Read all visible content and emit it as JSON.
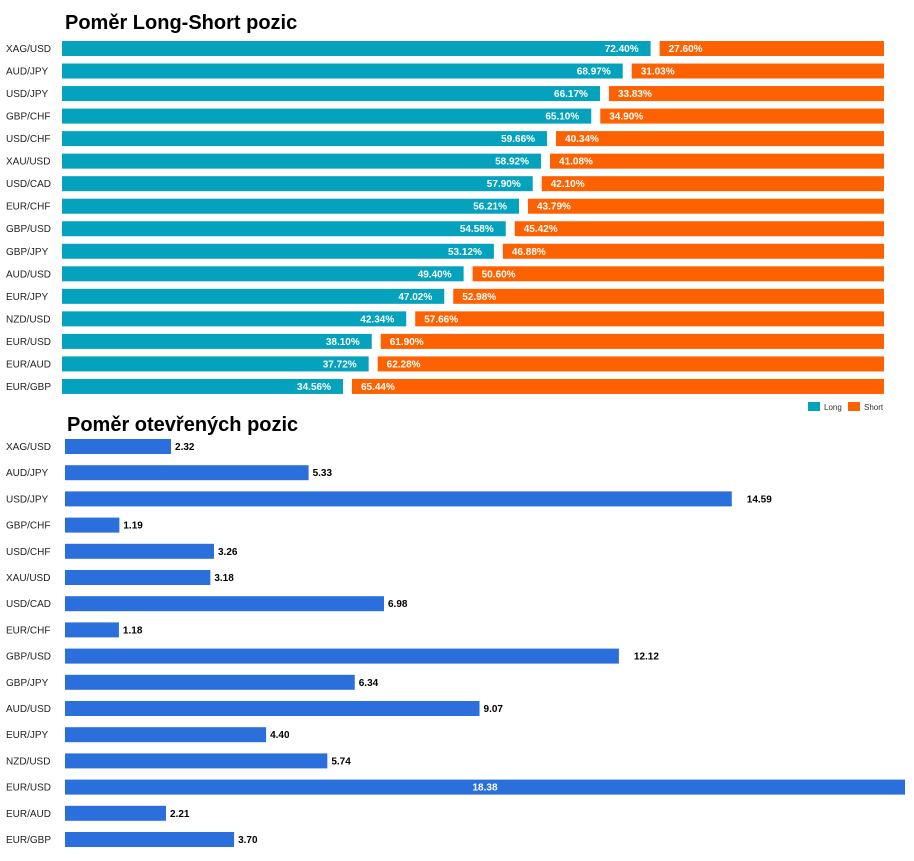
{
  "colors": {
    "long": "#04a2bc",
    "short": "#fe6200",
    "open": "#2a6fdb"
  },
  "chart_data": [
    {
      "type": "bar",
      "orientation": "horizontal",
      "stacked": true,
      "title": "Poměr Long-Short pozic",
      "categories": [
        "XAG/USD",
        "AUD/JPY",
        "USD/JPY",
        "GBP/CHF",
        "USD/CHF",
        "XAU/USD",
        "USD/CAD",
        "EUR/CHF",
        "GBP/USD",
        "GBP/JPY",
        "AUD/USD",
        "EUR/JPY",
        "NZD/USD",
        "EUR/USD",
        "EUR/AUD",
        "EUR/GBP"
      ],
      "series": [
        {
          "name": "Long",
          "values": [
            72.4,
            68.97,
            66.17,
            65.1,
            59.66,
            58.92,
            57.9,
            56.21,
            54.58,
            53.12,
            49.4,
            47.02,
            42.34,
            38.1,
            37.72,
            34.56
          ],
          "labels": [
            "72.40%",
            "68.97%",
            "66.17%",
            "65.10%",
            "59.66%",
            "58.92%",
            "57.90%",
            "56.21%",
            "54.58%",
            "53.12%",
            "49.40%",
            "47.02%",
            "42.34%",
            "38.10%",
            "37.72%",
            "34.56%"
          ]
        },
        {
          "name": "Short",
          "values": [
            27.6,
            31.03,
            33.83,
            34.9,
            40.34,
            41.08,
            42.1,
            43.79,
            45.42,
            46.88,
            50.6,
            52.98,
            57.66,
            61.9,
            62.28,
            65.44
          ],
          "labels": [
            "27.60%",
            "31.03%",
            "33.83%",
            "34.90%",
            "40.34%",
            "41.08%",
            "42.10%",
            "43.79%",
            "45.42%",
            "46.88%",
            "50.60%",
            "52.98%",
            "57.66%",
            "61.90%",
            "62.28%",
            "65.44%"
          ]
        }
      ],
      "legend": "bottom-right",
      "xlim": [
        0,
        100
      ]
    },
    {
      "type": "bar",
      "orientation": "horizontal",
      "title": "Poměr otevřených pozic",
      "categories": [
        "XAG/USD",
        "AUD/JPY",
        "USD/JPY",
        "GBP/CHF",
        "USD/CHF",
        "XAU/USD",
        "USD/CAD",
        "EUR/CHF",
        "GBP/USD",
        "GBP/JPY",
        "AUD/USD",
        "EUR/JPY",
        "NZD/USD",
        "EUR/USD",
        "EUR/AUD",
        "EUR/GBP"
      ],
      "values": [
        2.32,
        5.33,
        14.59,
        1.19,
        3.26,
        3.18,
        6.98,
        1.18,
        12.12,
        6.34,
        9.07,
        4.4,
        5.74,
        18.38,
        2.21,
        3.7
      ],
      "labels": [
        "2.32",
        "5.33",
        "14.59",
        "1.19",
        "3.26",
        "3.18",
        "6.98",
        "1.18",
        "12.12",
        "6.34",
        "9.07",
        "4.40",
        "5.74",
        "18.38",
        "2.21",
        "3.70"
      ],
      "xlim": [
        0,
        18.38
      ]
    }
  ]
}
